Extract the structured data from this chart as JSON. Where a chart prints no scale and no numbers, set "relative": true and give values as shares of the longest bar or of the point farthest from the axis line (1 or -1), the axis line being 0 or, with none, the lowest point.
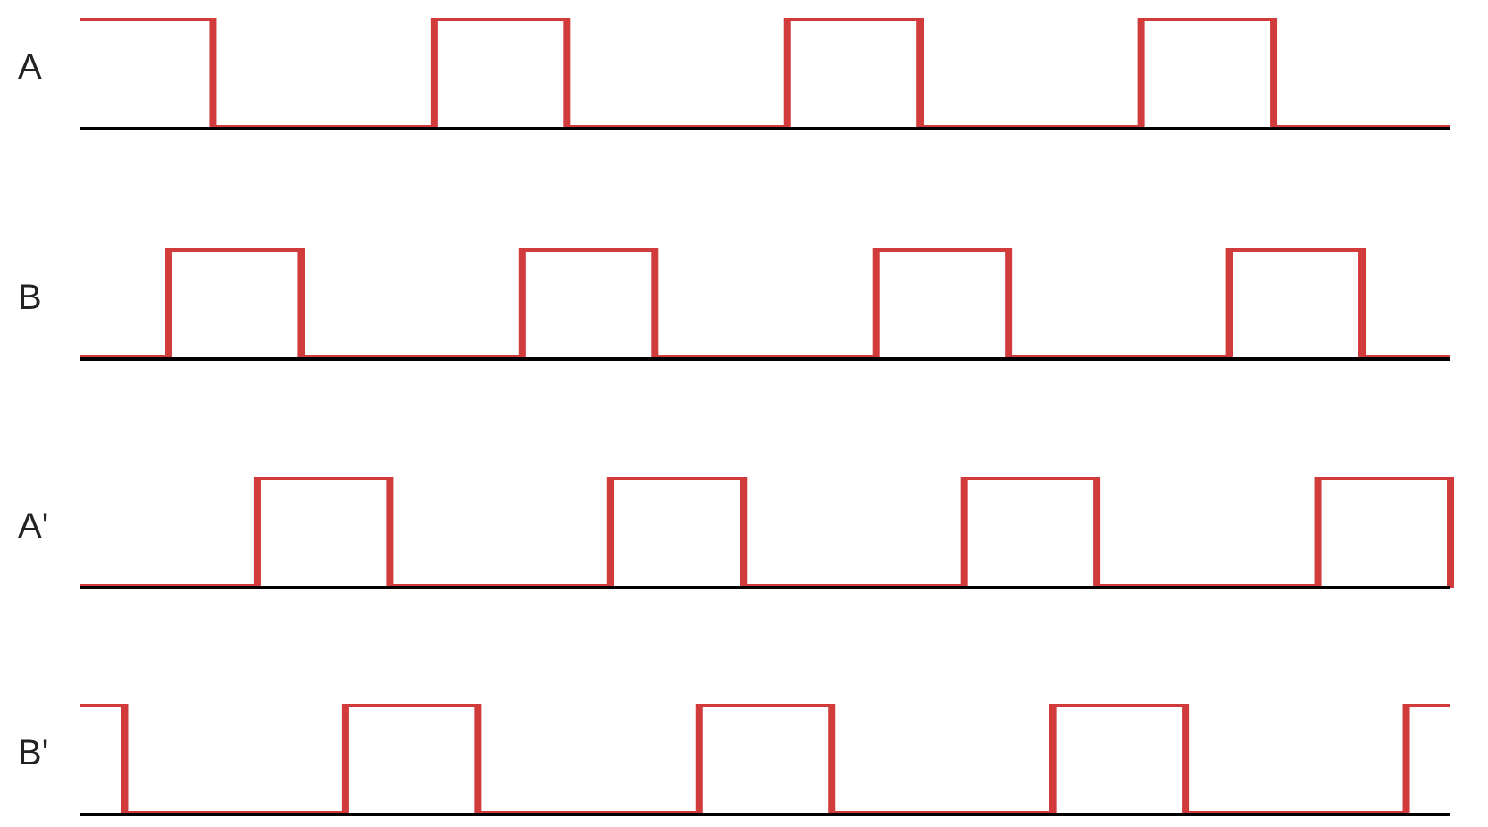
{
  "chart_data": [
    {
      "type": "step",
      "relative": true,
      "categories": [
        null,
        null,
        null,
        null,
        null,
        null,
        null,
        null,
        null,
        null,
        null,
        null,
        null,
        null,
        null,
        null,
        null,
        null,
        null,
        null,
        null,
        null,
        null,
        null,
        null,
        null,
        null,
        null,
        null,
        null,
        null,
        null
      ],
      "series": [
        {
          "name": "A",
          "color": "#d13b3b",
          "values": [
            1,
            1,
            1,
            0,
            0,
            0,
            0,
            0,
            1,
            1,
            1,
            0,
            0,
            0,
            0,
            0,
            1,
            1,
            1,
            0,
            0,
            0,
            0,
            0,
            1,
            1,
            1,
            0,
            0,
            0,
            0,
            0
          ]
        }
      ]
    },
    {
      "type": "step",
      "relative": true,
      "categories": [
        null,
        null,
        null,
        null,
        null,
        null,
        null,
        null,
        null,
        null,
        null,
        null,
        null,
        null,
        null,
        null,
        null,
        null,
        null,
        null,
        null,
        null,
        null,
        null,
        null,
        null,
        null,
        null,
        null,
        null,
        null,
        null
      ],
      "series": [
        {
          "name": "B",
          "color": "#d13b3b",
          "values": [
            0,
            0,
            1,
            1,
            1,
            0,
            0,
            0,
            0,
            0,
            1,
            1,
            1,
            0,
            0,
            0,
            0,
            0,
            1,
            1,
            1,
            0,
            0,
            0,
            0,
            0,
            1,
            1,
            1,
            0,
            0,
            0
          ]
        }
      ]
    },
    {
      "type": "step",
      "relative": true,
      "categories": [
        null,
        null,
        null,
        null,
        null,
        null,
        null,
        null,
        null,
        null,
        null,
        null,
        null,
        null,
        null,
        null,
        null,
        null,
        null,
        null,
        null,
        null,
        null,
        null,
        null,
        null,
        null,
        null,
        null,
        null,
        null,
        null
      ],
      "series": [
        {
          "name": "A'",
          "color": "#d13b3b",
          "values": [
            0,
            0,
            0,
            0,
            1,
            1,
            1,
            0,
            0,
            0,
            0,
            0,
            1,
            1,
            1,
            0,
            0,
            0,
            0,
            0,
            1,
            1,
            1,
            0,
            0,
            0,
            0,
            0,
            1,
            1,
            1,
            0
          ]
        }
      ]
    },
    {
      "type": "step",
      "relative": true,
      "categories": [
        null,
        null,
        null,
        null,
        null,
        null,
        null,
        null,
        null,
        null,
        null,
        null,
        null,
        null,
        null,
        null,
        null,
        null,
        null,
        null,
        null,
        null,
        null,
        null,
        null,
        null,
        null,
        null,
        null,
        null,
        null,
        null
      ],
      "series": [
        {
          "name": "B'",
          "color": "#d13b3b",
          "values": [
            1,
            0,
            0,
            0,
            0,
            0,
            1,
            1,
            1,
            0,
            0,
            0,
            0,
            0,
            1,
            1,
            1,
            0,
            0,
            0,
            0,
            0,
            1,
            1,
            1,
            0,
            0,
            0,
            0,
            0,
            1,
            1
          ]
        }
      ]
    }
  ]
}
